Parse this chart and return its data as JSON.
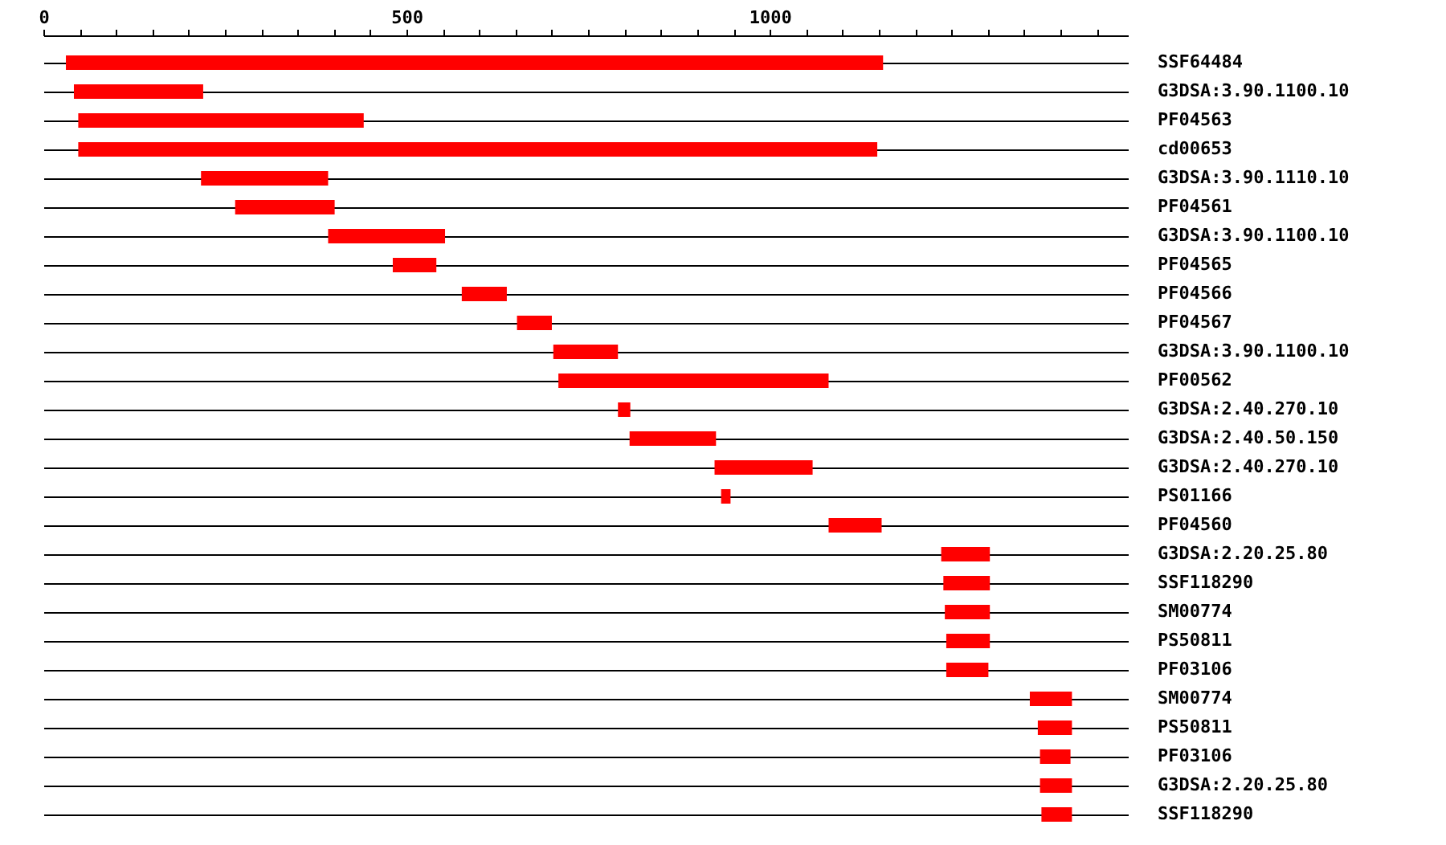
{
  "chart_data": {
    "type": "bar",
    "orientation": "horizontal",
    "color": "#ff0000",
    "grid": "y",
    "categories": [
      "SSF64484",
      "G3DSA:3.90.1100.10",
      "PF04563",
      "cd00653",
      "G3DSA:3.90.1110.10",
      "PF04561",
      "G3DSA:3.90.1100.10",
      "PF04565",
      "PF04566",
      "PF04567",
      "G3DSA:3.90.1100.10",
      "PF00562",
      "G3DSA:2.40.270.10",
      "G3DSA:2.40.50.150",
      "G3DSA:2.40.270.10",
      "PS01166",
      "PF04560",
      "G3DSA:2.20.25.80",
      "SSF118290",
      "SM00774",
      "PS50811",
      "PF03106",
      "SM00774",
      "PS50811",
      "PF03106",
      "G3DSA:2.20.25.80",
      "SSF118290"
    ],
    "base": [
      31,
      42,
      48,
      48,
      217,
      264,
      392,
      481,
      576,
      652,
      702,
      709,
      791,
      807,
      924,
      933,
      1081,
      1236,
      1239,
      1241,
      1243,
      1243,
      1358,
      1369,
      1372,
      1372,
      1374
    ],
    "values": [
      1125,
      178,
      393,
      1100,
      175,
      137,
      161,
      60,
      62,
      48,
      89,
      372,
      17,
      119,
      135,
      13,
      73,
      67,
      64,
      62,
      60,
      58,
      58,
      47,
      42,
      44,
      42
    ],
    "xlim": [
      0,
      1493
    ],
    "xticks": [
      0,
      {
        "value": 50,
        "label": null
      },
      {
        "value": 100,
        "label": null
      },
      {
        "value": 150,
        "label": null
      },
      {
        "value": 200,
        "label": null
      },
      {
        "value": 250,
        "label": null
      },
      {
        "value": 300,
        "label": null
      },
      {
        "value": 350,
        "label": null
      },
      {
        "value": 400,
        "label": null
      },
      {
        "value": 450,
        "label": null
      },
      500,
      {
        "value": 550,
        "label": null
      },
      {
        "value": 600,
        "label": null
      },
      {
        "value": 650,
        "label": null
      },
      {
        "value": 700,
        "label": null
      },
      {
        "value": 750,
        "label": null
      },
      {
        "value": 800,
        "label": null
      },
      {
        "value": 850,
        "label": null
      },
      {
        "value": 900,
        "label": null
      },
      {
        "value": 950,
        "label": null
      },
      1000,
      {
        "value": 1050,
        "label": null
      },
      {
        "value": 1100,
        "label": null
      },
      {
        "value": 1150,
        "label": null
      },
      {
        "value": 1200,
        "label": null
      },
      {
        "value": 1250,
        "label": null
      },
      {
        "value": 1300,
        "label": null
      },
      {
        "value": 1350,
        "label": null
      },
      {
        "value": 1400,
        "label": null
      },
      {
        "value": 1450,
        "label": null
      }
    ]
  }
}
